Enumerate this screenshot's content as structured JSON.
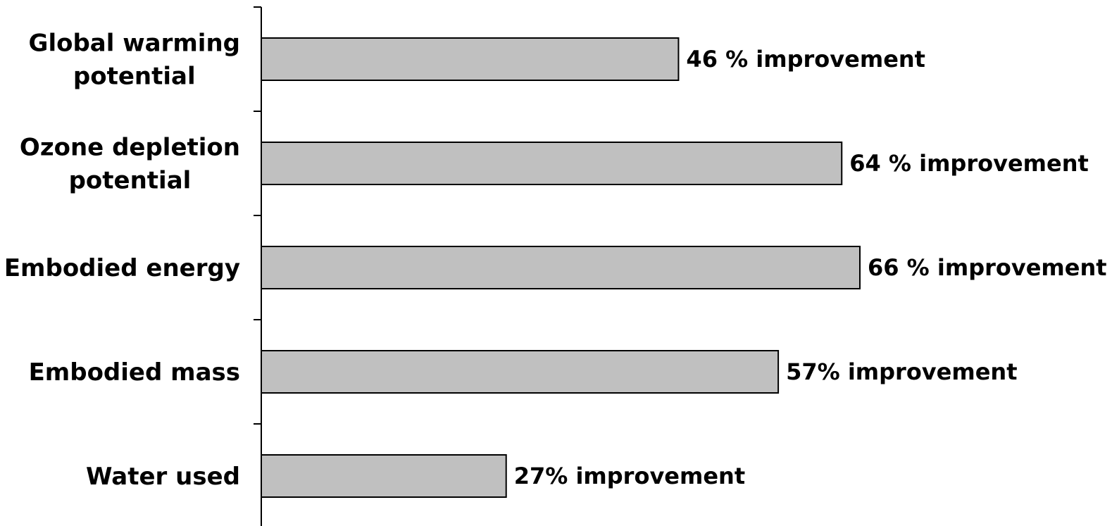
{
  "chart_data": {
    "type": "bar",
    "orientation": "horizontal",
    "categories": [
      [
        "Global warming",
        "potential"
      ],
      [
        "Ozone depletion",
        "potential"
      ],
      [
        "Embodied energy"
      ],
      [
        "Embodied mass"
      ],
      [
        "Water used"
      ]
    ],
    "values": [
      46,
      64,
      66,
      57,
      27
    ],
    "data_labels": [
      "46 % improvement",
      "64 % improvement",
      "66 % improvement",
      "57% improvement",
      "27% improvement"
    ],
    "xlim": [
      0,
      100
    ],
    "title": "",
    "xlabel": "",
    "ylabel": "",
    "grid": false,
    "legend": "none",
    "bar_color": "#c0c0c0",
    "bar_edge_color": "#000000"
  }
}
